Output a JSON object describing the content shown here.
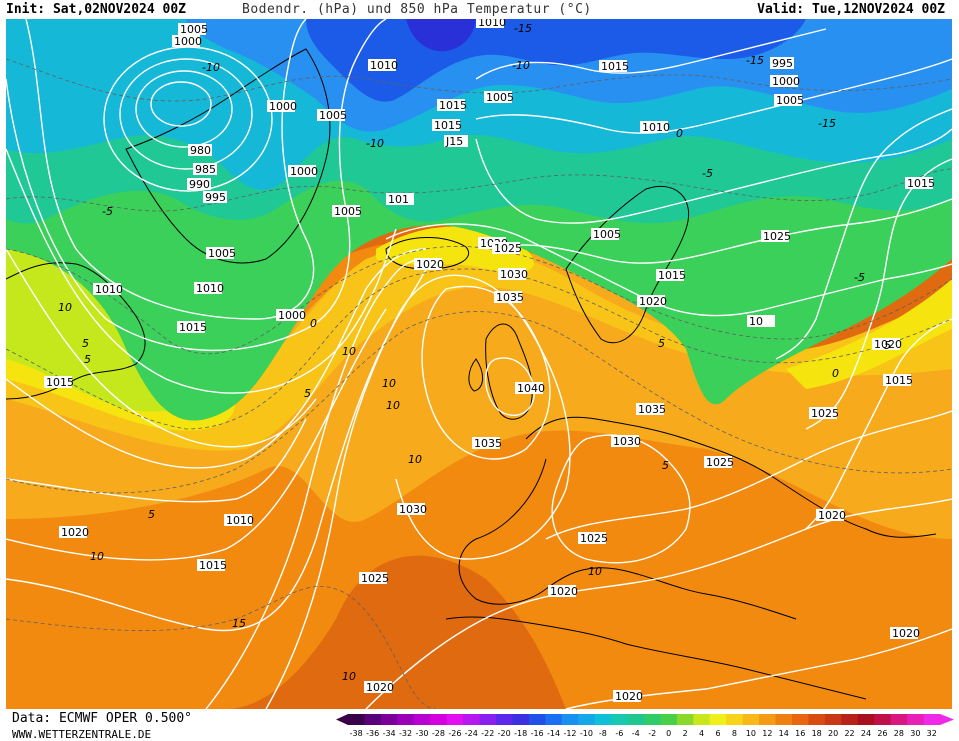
{
  "header": {
    "init": "Init: Sat,02NOV2024 00Z",
    "title": "Bodendr. (hPa) und 850 hPa Temperatur (°C)",
    "valid": "Valid: Tue,12NOV2024 00Z"
  },
  "footer": {
    "data_source": "Data: ECMWF OPER 0.500°",
    "website": "WWW.WETTERZENTRALE.DE"
  },
  "colors": {
    "deep_orange": "#e06a10",
    "orange": "#f28a10",
    "light_orange": "#f6aa1c",
    "yellow_orange": "#f8c418",
    "yellow": "#f6e40e",
    "lime": "#c4e81c",
    "green": "#3ad05a",
    "teal_green": "#20c896",
    "cyan": "#16b8d8",
    "light_blue": "#2890f0",
    "blue": "#1c5ae8",
    "dark_blue": "#2a30d8",
    "isobar": "#ffffff",
    "coastline": "#000000"
  },
  "map": {
    "isobar_labels": [
      {
        "text": "1005"
      },
      {
        "text": "1000"
      },
      {
        "text": "1010"
      },
      {
        "text": "1010"
      },
      {
        "text": "1015"
      },
      {
        "text": "995"
      },
      {
        "text": "1000"
      },
      {
        "text": "1005"
      },
      {
        "text": "1005"
      },
      {
        "text": "1015"
      },
      {
        "text": "1015"
      },
      {
        "text": "J15"
      },
      {
        "text": "1010"
      },
      {
        "text": "1000"
      },
      {
        "text": "1005"
      },
      {
        "text": "980"
      },
      {
        "text": "985"
      },
      {
        "text": "990"
      },
      {
        "text": "995"
      },
      {
        "text": "1000"
      },
      {
        "text": "1005"
      },
      {
        "text": "101"
      },
      {
        "text": "1010"
      },
      {
        "text": "1020"
      },
      {
        "text": "1015"
      },
      {
        "text": "1005"
      },
      {
        "text": "1010"
      },
      {
        "text": "1000"
      },
      {
        "text": "1015"
      },
      {
        "text": "1020"
      },
      {
        "text": "1025"
      },
      {
        "text": "1030"
      },
      {
        "text": "1035"
      },
      {
        "text": "1005"
      },
      {
        "text": "1025"
      },
      {
        "text": "1015"
      },
      {
        "text": "1020"
      },
      {
        "text": "10"
      },
      {
        "text": "1020"
      },
      {
        "text": "1015"
      },
      {
        "text": "1040"
      },
      {
        "text": "1035"
      },
      {
        "text": "1035"
      },
      {
        "text": "1030"
      },
      {
        "text": "1025"
      },
      {
        "text": "1025"
      },
      {
        "text": "1020"
      },
      {
        "text": "1010"
      },
      {
        "text": "1030"
      },
      {
        "text": "1020"
      },
      {
        "text": "1015"
      },
      {
        "text": "1025"
      },
      {
        "text": "1025"
      },
      {
        "text": "1020"
      },
      {
        "text": "1020"
      },
      {
        "text": "1020"
      },
      {
        "text": "1020"
      },
      {
        "text": "1015"
      }
    ],
    "temp_labels": [
      {
        "text": "-15"
      },
      {
        "text": "-10"
      },
      {
        "text": "-15"
      },
      {
        "text": "-15"
      },
      {
        "text": "-10"
      },
      {
        "text": "-10"
      },
      {
        "text": "-5"
      },
      {
        "text": "-5"
      },
      {
        "text": "0"
      },
      {
        "text": "5"
      },
      {
        "text": "10"
      },
      {
        "text": "10"
      },
      {
        "text": "5"
      },
      {
        "text": "5"
      },
      {
        "text": "10"
      },
      {
        "text": "10"
      },
      {
        "text": "15"
      },
      {
        "text": "10"
      },
      {
        "text": "10"
      },
      {
        "text": "5"
      },
      {
        "text": "10"
      },
      {
        "text": "5"
      },
      {
        "text": "0"
      },
      {
        "text": "5"
      },
      {
        "text": "0"
      },
      {
        "text": "-5"
      },
      {
        "text": "10"
      },
      {
        "text": "5"
      }
    ]
  },
  "colorbar": {
    "ticks": [
      "-38",
      "-36",
      "-34",
      "-32",
      "-30",
      "-28",
      "-26",
      "-24",
      "-22",
      "-20",
      "-18",
      "-16",
      "-14",
      "-12",
      "-10",
      "-8",
      "-6",
      "-4",
      "-2",
      "0",
      "2",
      "4",
      "6",
      "8",
      "10",
      "12",
      "14",
      "16",
      "18",
      "20",
      "22",
      "24",
      "26",
      "28",
      "30",
      "32"
    ],
    "colors": [
      "#3a0048",
      "#5a0078",
      "#7a0098",
      "#9a00b8",
      "#b800d0",
      "#d400e0",
      "#e010f0",
      "#b818f0",
      "#8a20f0",
      "#5c28ec",
      "#3a30e0",
      "#2050e8",
      "#1a70f0",
      "#1890f0",
      "#14a8e8",
      "#10c0d8",
      "#18c8b0",
      "#20c890",
      "#30cc6a",
      "#48d048",
      "#8ad82a",
      "#c8e81c",
      "#f0f018",
      "#f8d418",
      "#f8b818",
      "#f49a14",
      "#ee8012",
      "#e86610",
      "#d84c10",
      "#c83814",
      "#b82218",
      "#a81020",
      "#c01048",
      "#d81880",
      "#e820b8",
      "#f028e8"
    ]
  }
}
